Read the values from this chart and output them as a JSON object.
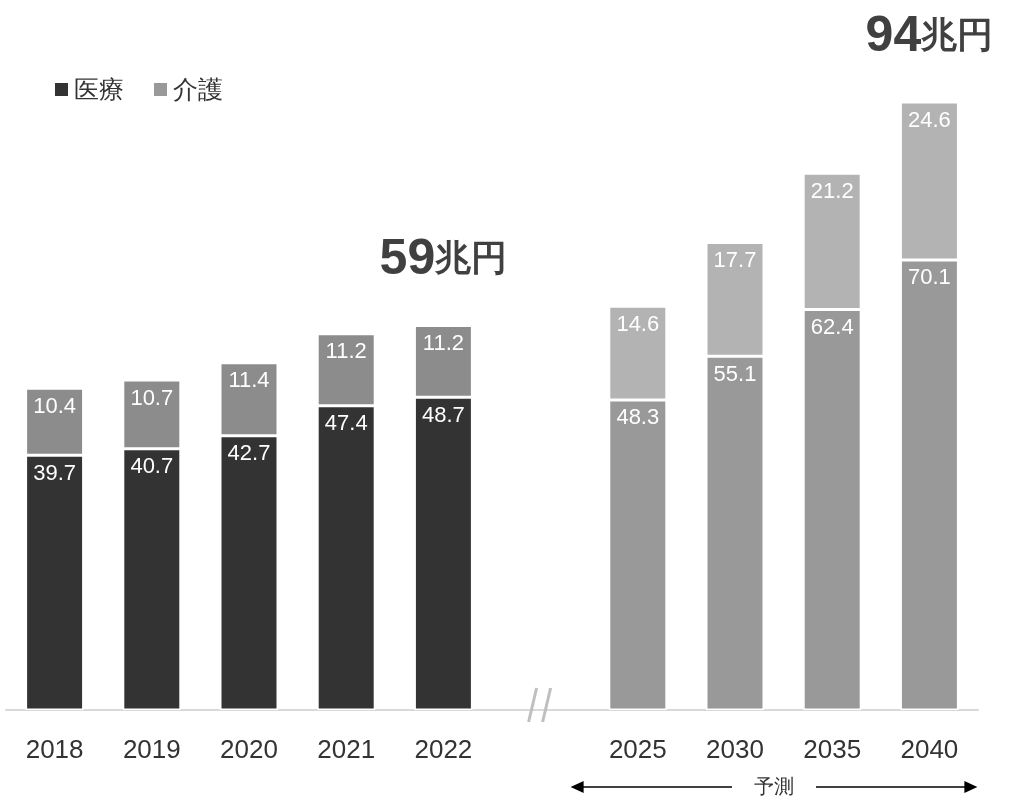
{
  "chart_data": {
    "type": "bar",
    "stacked": true,
    "data_labels": true,
    "legend": "top left",
    "categories": [
      "2018",
      "2019",
      "2020",
      "2021",
      "2022",
      null,
      "2025",
      "2030",
      "2035",
      "2040"
    ],
    "series": [
      {
        "name": "医療",
        "color": "#333333",
        "colors": [
          "#333333",
          "#333333",
          "#333333",
          "#333333",
          "#333333",
          null,
          "#999999",
          "#999999",
          "#999999",
          "#999999"
        ],
        "values": [
          39.7,
          40.7,
          42.7,
          47.4,
          48.7,
          null,
          48.3,
          55.1,
          62.4,
          70.1
        ]
      },
      {
        "name": "介護",
        "color": "#999999",
        "colors": [
          "#8c8c8c",
          "#8c8c8c",
          "#8c8c8c",
          "#8c8c8c",
          "#8c8c8c",
          null,
          "#b3b3b3",
          "#b3b3b3",
          "#b3b3b3",
          "#b3b3b3"
        ],
        "values": [
          10.4,
          10.7,
          11.4,
          11.2,
          11.2,
          null,
          14.6,
          17.7,
          21.2,
          24.6
        ]
      }
    ],
    "annotations": [
      {
        "text": "59兆円",
        "x": "2022",
        "y": 59.9
      },
      {
        "text": "94兆円",
        "x": "2040",
        "y": 94.7
      },
      "予測"
    ]
  }
}
